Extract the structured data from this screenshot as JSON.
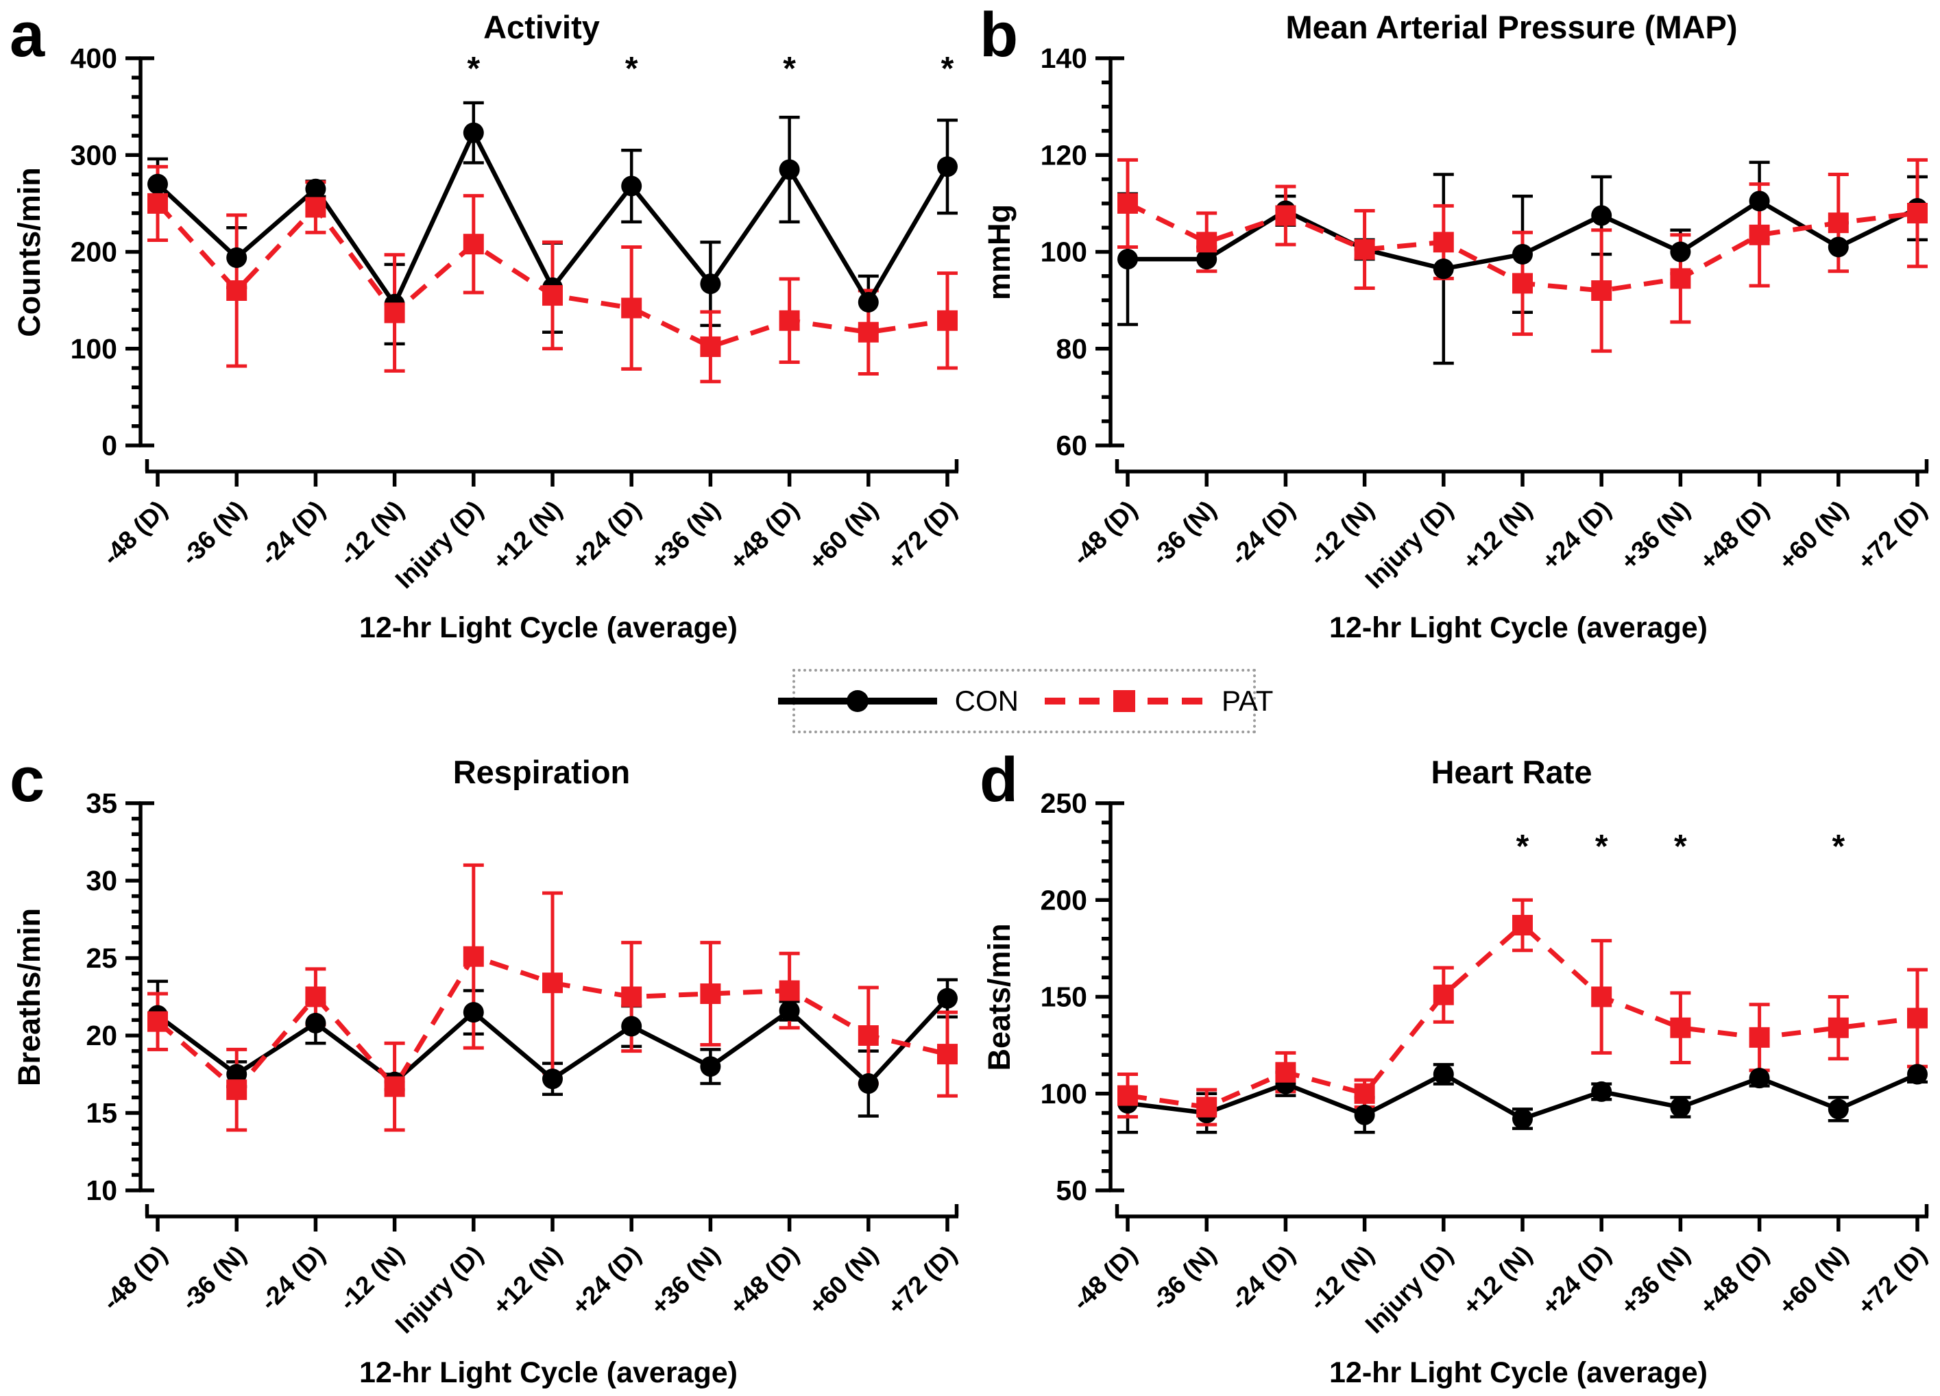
{
  "figure": {
    "background": "#ffffff",
    "axis_color": "#000000"
  },
  "legend": {
    "border_color": "#9b9b9b",
    "items": [
      {
        "label": "CON",
        "color": "#000000",
        "marker": "circle",
        "line_style": "solid"
      },
      {
        "label": "PAT",
        "color": "#ed1c24",
        "marker": "square",
        "line_style": "dashed"
      }
    ]
  },
  "x_axis": {
    "title": "12-hr Light Cycle (average)",
    "categories": [
      "-48 (D)",
      "-36 (N)",
      "-24 (D)",
      "-12 (N)",
      "Injury (D)",
      "+12 (N)",
      "+24 (D)",
      "+36 (N)",
      "+48 (D)",
      "+60 (N)",
      "+72 (D)"
    ]
  },
  "chart_data": [
    {
      "type": "line",
      "letter": "a",
      "title": "Activity",
      "ylabel": "Counts/min",
      "xlabel": "12-hr Light Cycle (average)",
      "ylim": [
        0,
        400
      ],
      "ymajor": 100,
      "yminor": 20,
      "grid": false,
      "categories": [
        "-48 (D)",
        "-36 (N)",
        "-24 (D)",
        "-12 (N)",
        "Injury (D)",
        "+12 (N)",
        "+24 (D)",
        "+36 (N)",
        "+48 (D)",
        "+60 (N)",
        "+72 (D)"
      ],
      "series": [
        {
          "name": "CON",
          "color": "#000000",
          "line": "solid",
          "marker": "circle",
          "values": [
            270,
            194,
            265,
            146,
            323,
            163,
            268,
            167,
            285,
            148,
            288
          ],
          "errors": [
            26,
            31,
            8,
            41,
            31,
            46,
            37,
            43,
            54,
            27,
            48
          ]
        },
        {
          "name": "PAT",
          "color": "#ed1c24",
          "line": "dashed",
          "marker": "square",
          "values": [
            250,
            160,
            246,
            137,
            208,
            155,
            142,
            102,
            129,
            117,
            129
          ],
          "errors": [
            38,
            78,
            26,
            60,
            50,
            55,
            63,
            36,
            43,
            43,
            49
          ]
        }
      ],
      "annotations": {
        "symbol": "*",
        "y_value": 378,
        "category_indices": [
          4,
          6,
          8,
          10
        ]
      }
    },
    {
      "type": "line",
      "letter": "b",
      "title": "Mean Arterial Pressure (MAP)",
      "ylabel": "mmHg",
      "xlabel": "12-hr Light Cycle (average)",
      "ylim": [
        60,
        140
      ],
      "ymajor": 20,
      "yminor": 5,
      "grid": false,
      "categories": [
        "-48 (D)",
        "-36 (N)",
        "-24 (D)",
        "-12 (N)",
        "Injury (D)",
        "+12 (N)",
        "+24 (D)",
        "+36 (N)",
        "+48 (D)",
        "+60 (N)",
        "+72 (D)"
      ],
      "series": [
        {
          "name": "CON",
          "color": "#000000",
          "line": "solid",
          "marker": "circle",
          "values": [
            98.5,
            98.5,
            108.5,
            100.5,
            96.5,
            99.5,
            107.5,
            100,
            110.5,
            101,
            109
          ],
          "errors": [
            13.5,
            2.5,
            3,
            2,
            19.5,
            12,
            8,
            4.5,
            8,
            5,
            6.5
          ]
        },
        {
          "name": "PAT",
          "color": "#ed1c24",
          "line": "dashed",
          "marker": "square",
          "values": [
            110,
            102,
            107.5,
            100.5,
            102,
            93.5,
            92,
            94.5,
            103.5,
            106,
            108
          ],
          "errors": [
            9,
            6,
            6,
            8,
            7.5,
            10.5,
            12.5,
            9,
            10.5,
            10,
            11
          ]
        }
      ],
      "annotations": null
    },
    {
      "type": "line",
      "letter": "c",
      "title": "Respiration",
      "ylabel": "Breaths/min",
      "xlabel": "12-hr Light Cycle (average)",
      "ylim": [
        10,
        35
      ],
      "ymajor": 5,
      "yminor": 1,
      "grid": false,
      "categories": [
        "-48 (D)",
        "-36 (N)",
        "-24 (D)",
        "-12 (N)",
        "Injury (D)",
        "+12 (N)",
        "+24 (D)",
        "+36 (N)",
        "+48 (D)",
        "+60 (N)",
        "+72 (D)"
      ],
      "series": [
        {
          "name": "CON",
          "color": "#000000",
          "line": "solid",
          "marker": "circle",
          "values": [
            21.3,
            17.5,
            20.8,
            17.0,
            21.5,
            17.2,
            20.6,
            18.0,
            21.6,
            16.9,
            22.4
          ],
          "errors": [
            2.2,
            0.8,
            1.3,
            0.5,
            1.4,
            1.0,
            1.3,
            1.1,
            0.6,
            2.1,
            1.2
          ]
        },
        {
          "name": "PAT",
          "color": "#ed1c24",
          "line": "dashed",
          "marker": "square",
          "values": [
            20.9,
            16.5,
            22.5,
            16.7,
            25.1,
            23.4,
            22.5,
            22.7,
            22.9,
            20.0,
            18.8
          ],
          "errors": [
            1.8,
            2.6,
            1.8,
            2.8,
            5.9,
            5.8,
            3.5,
            3.3,
            2.4,
            3.1,
            2.7
          ]
        }
      ],
      "annotations": null
    },
    {
      "type": "line",
      "letter": "d",
      "title": "Heart Rate",
      "ylabel": "Beats/min",
      "xlabel": "12-hr Light Cycle (average)",
      "ylim": [
        50,
        250
      ],
      "ymajor": 50,
      "yminor": 10,
      "grid": false,
      "categories": [
        "-48 (D)",
        "-36 (N)",
        "-24 (D)",
        "-12 (N)",
        "Injury (D)",
        "+12 (N)",
        "+24 (D)",
        "+36 (N)",
        "+48 (D)",
        "+60 (N)",
        "+72 (D)"
      ],
      "series": [
        {
          "name": "CON",
          "color": "#000000",
          "line": "solid",
          "marker": "circle",
          "values": [
            95,
            90,
            105,
            89,
            110,
            87,
            101,
            93,
            108,
            92,
            110
          ],
          "errors": [
            15,
            10,
            6,
            9,
            5,
            5,
            4,
            5,
            4,
            6,
            4
          ]
        },
        {
          "name": "PAT",
          "color": "#ed1c24",
          "line": "dashed",
          "marker": "square",
          "values": [
            99,
            93,
            111,
            100,
            151,
            187,
            150,
            134,
            129,
            134,
            139
          ],
          "errors": [
            11,
            9,
            10,
            7,
            14,
            13,
            29,
            18,
            17,
            16,
            25
          ]
        }
      ],
      "annotations": {
        "symbol": "*",
        "y_value": 222,
        "category_indices": [
          5,
          6,
          7,
          9
        ]
      }
    }
  ]
}
